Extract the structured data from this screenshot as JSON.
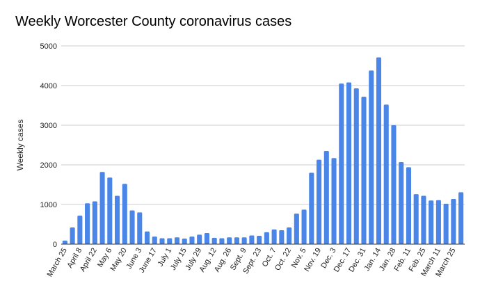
{
  "chart_data": {
    "type": "bar",
    "title": "Weekly Worcester County coronavirus cases",
    "xlabel": "",
    "ylabel": "Weekly cases",
    "ylim": [
      0,
      5000
    ],
    "yticks": [
      "0",
      "1000",
      "2000",
      "3000",
      "4000",
      "5000"
    ],
    "grid": true,
    "bar_color": "#4a86e8",
    "grid_color": "#cccccc",
    "x_tick_labels": [
      "March 25",
      "April 8",
      "April 22",
      "May 6",
      "May 20",
      "June 3",
      "June 17",
      "July 1",
      "July 15",
      "July 29",
      "Aug. 12",
      "Aug. 26",
      "Sept. 9",
      "Sept. 23",
      "Oct. 7",
      "Oct. 22",
      "Nov. 5",
      "Nov. 19",
      "Dec. 3",
      "Dec. 17",
      "Dec. 31",
      "Jan. 14",
      "Jan. 28",
      "Feb. 11",
      "Feb. 25",
      "March 11",
      "March 25"
    ],
    "values": [
      90,
      420,
      720,
      1030,
      1080,
      1820,
      1680,
      1220,
      1520,
      850,
      800,
      320,
      190,
      150,
      150,
      170,
      140,
      190,
      240,
      280,
      160,
      150,
      170,
      170,
      170,
      220,
      210,
      300,
      370,
      350,
      420,
      770,
      870,
      1800,
      2130,
      2350,
      2170,
      4050,
      4080,
      3930,
      3720,
      4380,
      4710,
      3520,
      3000,
      2070,
      1940,
      1260,
      1220,
      1100,
      1110,
      1020,
      1140,
      1310
    ]
  }
}
